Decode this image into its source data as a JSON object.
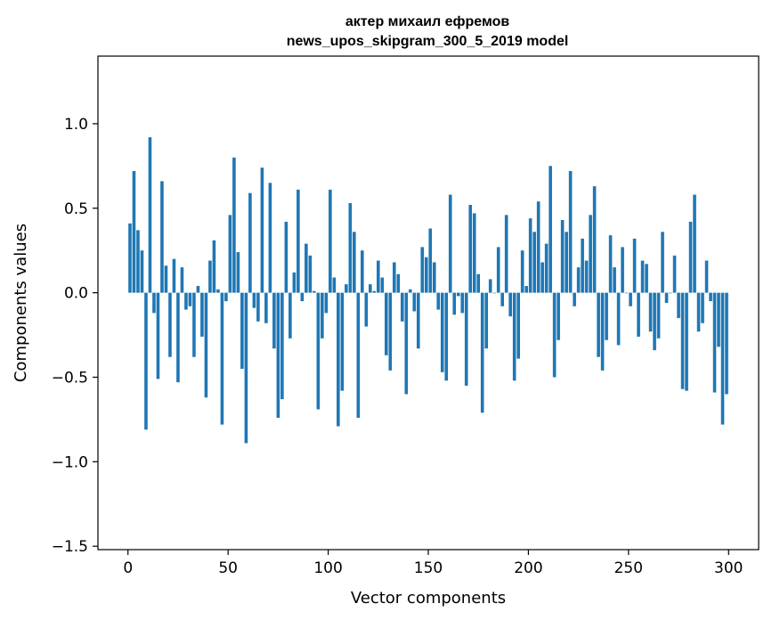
{
  "chart_data": {
    "type": "bar",
    "title_line1": "актер михаил ефремов",
    "title_line2": "news_upos_skipgram_300_5_2019 model",
    "xlabel": "Vector components",
    "ylabel": "Components values",
    "xlim": [
      -15,
      315
    ],
    "ylim": [
      -1.52,
      1.4
    ],
    "xticks": [
      0,
      50,
      100,
      150,
      200,
      250,
      300
    ],
    "xtick_labels": [
      "0",
      "50",
      "100",
      "150",
      "200",
      "250",
      "300"
    ],
    "yticks": [
      -1.5,
      -1.0,
      -0.5,
      0.0,
      0.5,
      1.0
    ],
    "ytick_labels": [
      "−1.5",
      "−1.0",
      "−0.5",
      "0.0",
      "0.5",
      "1.0"
    ],
    "bar_color": "#1f77b4",
    "values": [
      0.41,
      0.72,
      0.37,
      0.25,
      -0.81,
      0.92,
      -0.12,
      -0.51,
      0.66,
      0.16,
      -0.38,
      0.2,
      -0.53,
      0.15,
      -0.1,
      -0.08,
      -0.38,
      0.04,
      -0.26,
      -0.62,
      0.19,
      0.31,
      0.02,
      -0.78,
      -0.05,
      0.46,
      0.8,
      0.24,
      -0.45,
      -0.89,
      0.59,
      -0.09,
      -0.17,
      0.74,
      -0.18,
      0.65,
      -0.33,
      -0.74,
      -0.63,
      0.42,
      -0.27,
      0.12,
      0.61,
      -0.05,
      0.29,
      0.22,
      0.01,
      -0.69,
      -0.27,
      -0.12,
      0.61,
      0.09,
      -0.79,
      -0.58,
      0.05,
      0.53,
      0.36,
      -0.74,
      0.25,
      -0.2,
      0.05,
      0.01,
      0.19,
      0.09,
      -0.37,
      -0.46,
      0.18,
      0.11,
      -0.17,
      -0.6,
      0.02,
      -0.11,
      -0.33,
      0.27,
      0.21,
      0.38,
      0.18,
      -0.1,
      -0.47,
      -0.52,
      0.58,
      -0.13,
      -0.02,
      -0.12,
      -0.55,
      0.52,
      0.47,
      0.11,
      -0.71,
      -0.33,
      0.08,
      0.0,
      0.27,
      -0.08,
      0.46,
      -0.14,
      -0.52,
      -0.39,
      0.25,
      0.04,
      0.44,
      0.36,
      0.54,
      0.18,
      0.29,
      0.75,
      -0.5,
      -0.28,
      0.43,
      0.36,
      0.72,
      -0.08,
      0.15,
      0.32,
      0.19,
      0.46,
      0.63,
      -0.38,
      -0.46,
      -0.28,
      0.34,
      0.15,
      -0.31,
      0.27,
      0.0,
      -0.08,
      0.32,
      -0.26,
      0.19,
      0.17,
      -0.23,
      -0.34,
      -0.27,
      0.36,
      -0.06,
      0.0,
      0.22,
      -0.15,
      -0.57,
      -0.58,
      0.42,
      0.58,
      -0.23,
      -0.18,
      0.19,
      -0.05,
      -0.59,
      -0.32,
      -0.78,
      -0.6
    ]
  }
}
